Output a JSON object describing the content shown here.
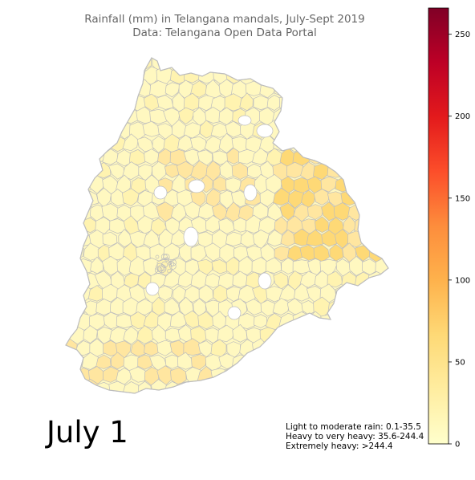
{
  "title_line1": "Rainfall (mm) in Telangana mandals, July-Sept 2019",
  "title_line2": "Data: Telangana Open Data Portal",
  "date_label": "July 1",
  "legend_notes": [
    "Light to moderate rain: 0.1-35.5",
    "Heavy to very heavy: 35.6-244.4",
    "Extremely heavy: >244.4"
  ],
  "colorbar": {
    "min": 0,
    "max": 266,
    "ticks": [
      0,
      50,
      100,
      150,
      200,
      250
    ],
    "colormap": "YlOrRd",
    "colors": [
      "#ffffcc",
      "#ffeda0",
      "#fed976",
      "#feb24c",
      "#fd8d3c",
      "#fc4e2a",
      "#e31a1c",
      "#bd0026",
      "#800026"
    ]
  },
  "map_style": {
    "boundary_color": "#bdbdbd",
    "base_fill": "#fff8c0",
    "light_fill": "#fff3b0",
    "moderate_fill": "#ffe6a0",
    "heavy_fill": "#fed976"
  }
}
